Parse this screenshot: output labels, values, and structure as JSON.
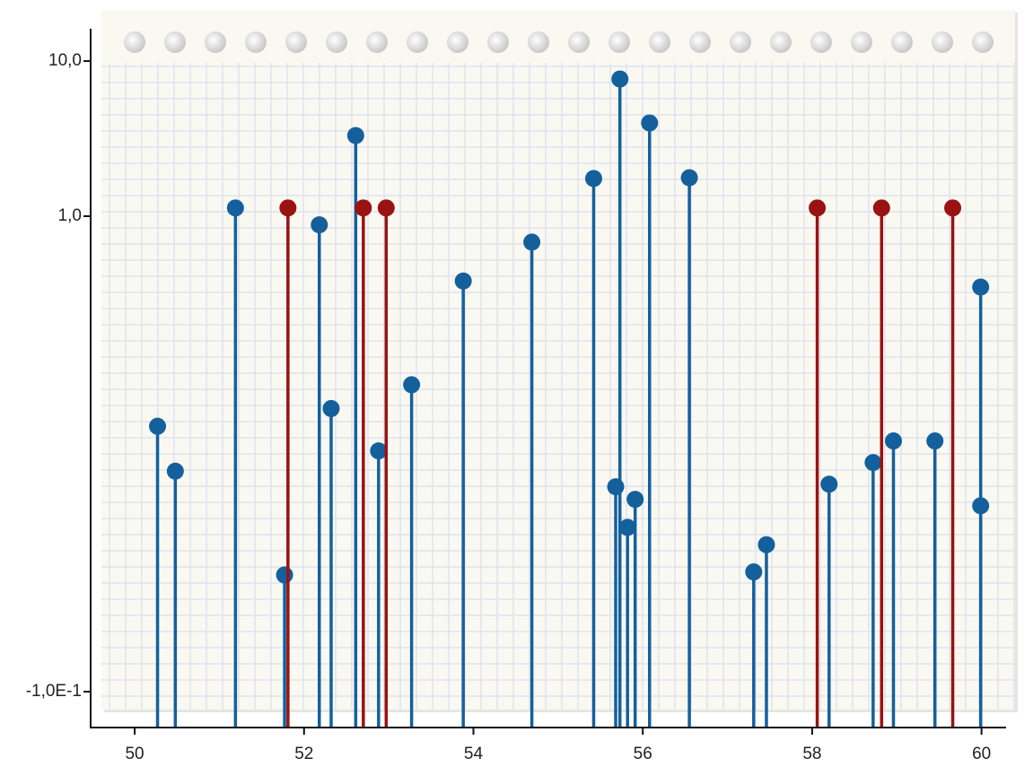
{
  "chart_data": {
    "type": "stem",
    "yscale": "symlog",
    "xlim": [
      49.48,
      60.29
    ],
    "xticks": [
      50,
      52,
      54,
      56,
      58,
      60
    ],
    "ylim": [
      -0.183,
      16.6
    ],
    "yticks": [
      {
        "value": 10,
        "label": "10,0"
      },
      {
        "value": 1,
        "label": "1,0"
      },
      {
        "value": -0.1,
        "label": "-1,0E-1"
      }
    ],
    "series": [
      {
        "color": "#14609c",
        "x": [
          50.27,
          50.48,
          51.19,
          51.77,
          52.18,
          52.32,
          52.61,
          52.88,
          53.27,
          53.88,
          54.69,
          55.42,
          55.68,
          55.73,
          55.82,
          55.91,
          56.08,
          56.55,
          57.31,
          57.46,
          58.2,
          58.72,
          58.96,
          59.45,
          59.99,
          59.99
        ],
        "values": [
          0.514,
          0.41,
          1.13,
          0.17,
          0.98,
          0.555,
          3.31,
          0.457,
          0.61,
          0.85,
          0.94,
          1.75,
          0.374,
          7.66,
          0.28,
          0.345,
          3.99,
          1.77,
          0.177,
          0.24,
          0.38,
          0.43,
          0.48,
          0.48,
          0.836,
          0.33
        ]
      },
      {
        "color": "#9a1212",
        "x": [
          51.81,
          52.7,
          52.97,
          58.06,
          58.82,
          59.66
        ],
        "values": [
          1.13,
          1.13,
          1.13,
          1.13,
          1.13,
          1.13
        ]
      }
    ]
  }
}
